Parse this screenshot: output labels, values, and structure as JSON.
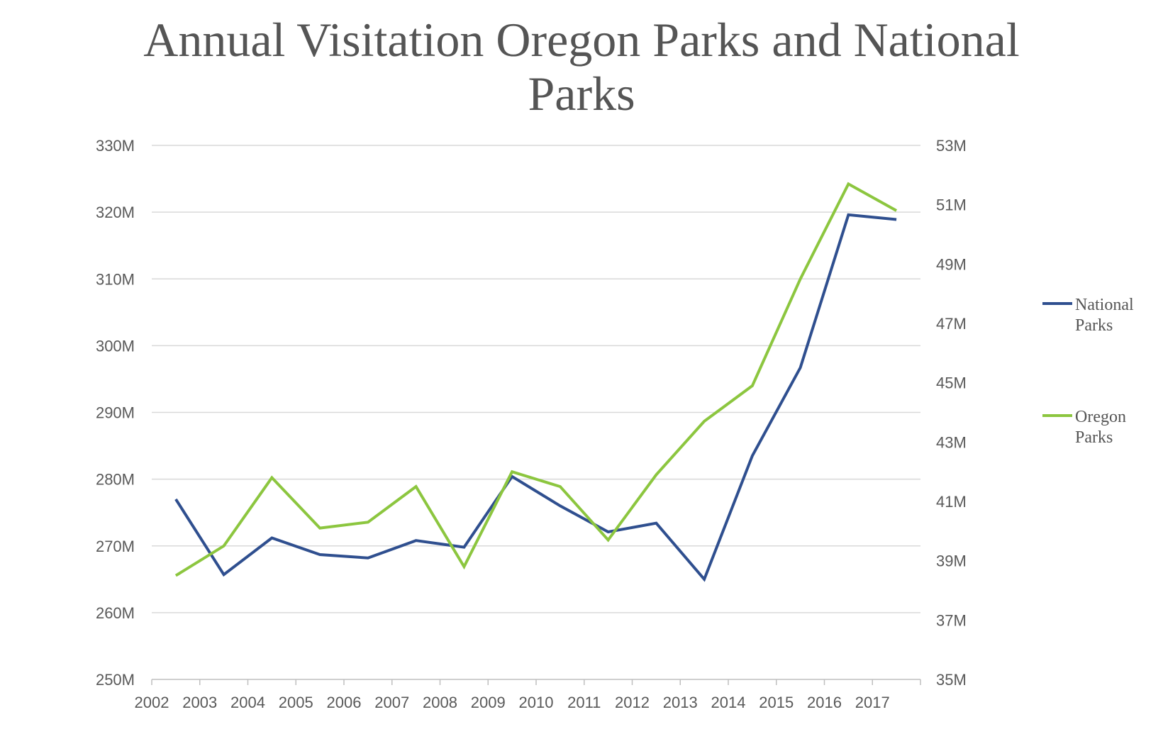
{
  "chart_data": {
    "type": "line",
    "title_lines": [
      "Annual Visitation Oregon Parks and National",
      "Parks"
    ],
    "categories": [
      "2002",
      "2003",
      "2004",
      "2005",
      "2006",
      "2007",
      "2008",
      "2009",
      "2010",
      "2011",
      "2012",
      "2013",
      "2014",
      "2015",
      "2016",
      "2017"
    ],
    "left_axis": {
      "ticks": [
        "250M",
        "260M",
        "270M",
        "280M",
        "290M",
        "300M",
        "310M",
        "320M",
        "330M"
      ],
      "ylim": [
        250,
        330
      ]
    },
    "right_axis": {
      "ticks": [
        "35M",
        "37M",
        "39M",
        "41M",
        "43M",
        "45M",
        "47M",
        "49M",
        "51M",
        "53M"
      ],
      "ylim": [
        35,
        53
      ]
    },
    "series": [
      {
        "name": "National Parks",
        "legend_lines": [
          "National",
          "Parks"
        ],
        "axis": "left",
        "color": "#2f4f8f",
        "values": [
          277.0,
          265.7,
          271.2,
          268.7,
          268.2,
          270.8,
          269.8,
          280.4,
          276.0,
          272.1,
          273.4,
          265.0,
          283.5,
          296.7,
          319.6,
          318.9
        ]
      },
      {
        "name": "Oregon Parks",
        "legend_lines": [
          "Oregon",
          "Parks"
        ],
        "axis": "right",
        "color": "#8cc63f",
        "values": [
          38.5,
          39.5,
          41.8,
          40.1,
          40.3,
          41.5,
          38.8,
          42.0,
          41.5,
          39.7,
          41.9,
          43.7,
          44.9,
          48.5,
          51.7,
          50.8
        ]
      }
    ],
    "grid": true,
    "legend_position": "right"
  }
}
